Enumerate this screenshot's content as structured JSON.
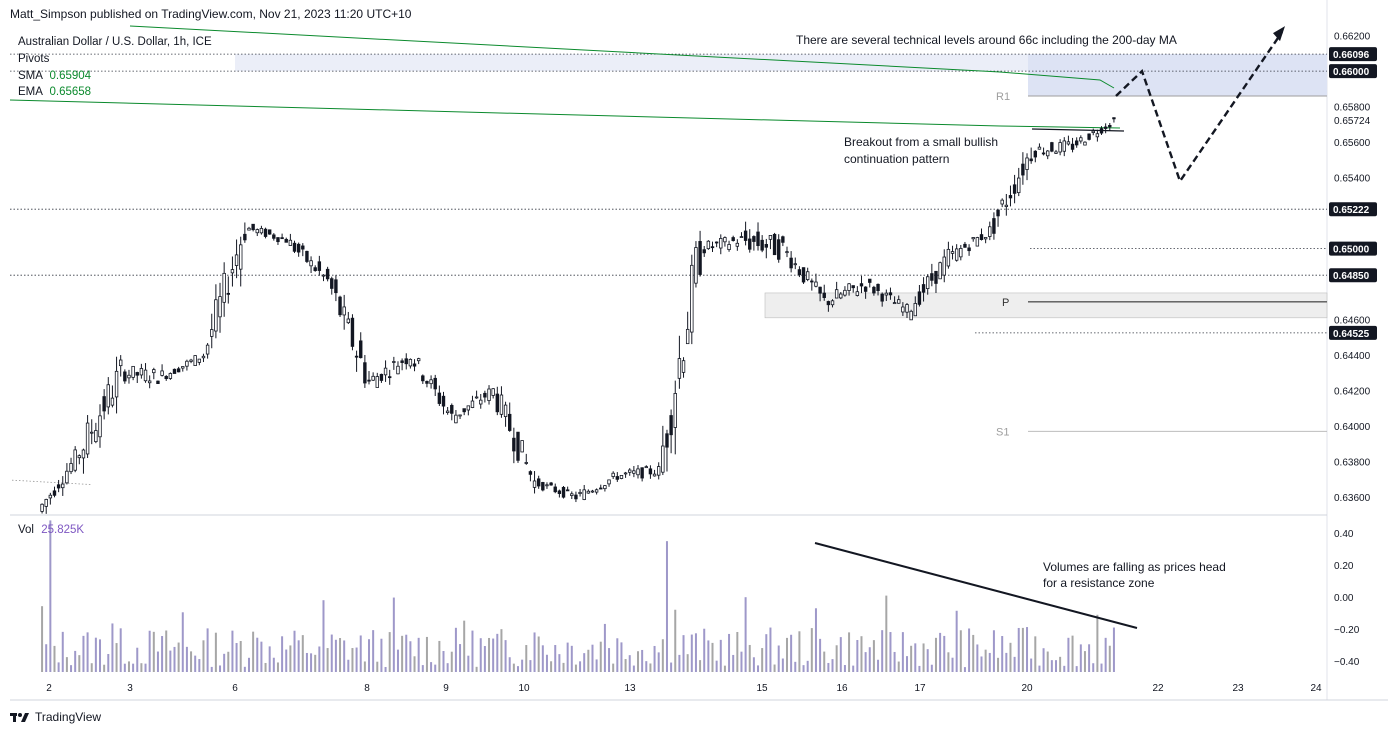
{
  "header": {
    "published_by": "Matt_Simpson published on TradingView.com, Nov 21, 2023 11:20 UTC+10",
    "symbol": "Australian Dollar / U.S. Dollar, 1h, ICE",
    "pivots_label": "Pivots",
    "sma_label": "SMA",
    "sma_value": "0.65904",
    "ema_label": "EMA",
    "ema_value": "0.65658",
    "vol_label": "Vol",
    "vol_value": "25.825K"
  },
  "footer": {
    "brand": "TradingView"
  },
  "colors": {
    "up": "#131722",
    "down": "#131722",
    "sma": "#0b8a2d",
    "ema": "#0b8a2d",
    "volume_bar": "#9e98c9",
    "volume_bar_alt": "#a6a6a6",
    "resistance_zone": "#dde3f4",
    "pivot_zone": "#eeeeee",
    "price_badge_bg": "#131722",
    "price_badge_fg": "#ffffff"
  },
  "chart_data": [
    {
      "type": "candlestick",
      "title": "Australian Dollar / U.S. Dollar, 1h, ICE",
      "x_tick_labels": [
        "2",
        "3",
        "6",
        "8",
        "9",
        "10",
        "13",
        "15",
        "16",
        "17",
        "20",
        "22",
        "23",
        "24"
      ],
      "y_tick_labels": [
        "0.66200",
        "0.65800",
        "0.65600",
        "0.65400",
        "0.64600",
        "0.64400",
        "0.64200",
        "0.64000",
        "0.63800",
        "0.63600"
      ],
      "ylim": [
        0.6351,
        0.6626
      ],
      "price_badges": [
        "0.66096",
        "0.66000",
        "0.65222",
        "0.65000",
        "0.64850",
        "0.64525"
      ],
      "last_price_label": "0.65724",
      "pivot_labels": {
        "r1": "R1",
        "p": "P",
        "s1": "S1"
      },
      "pivot_levels": {
        "r1": 0.6586,
        "p": 0.647,
        "s1": 0.6397
      },
      "horizontal_levels": [
        0.66096,
        0.66,
        0.65222,
        0.65,
        0.6485,
        0.64525
      ],
      "resistance_zone": [
        0.6586,
        0.66096
      ],
      "pivot_zone": [
        0.6461,
        0.6475
      ],
      "daily_closes": [
        {
          "day": "2",
          "open": 0.6352,
          "high": 0.639,
          "low": 0.635,
          "close": 0.6385
        },
        {
          "day": "2b",
          "open": 0.6385,
          "high": 0.644,
          "low": 0.636,
          "close": 0.643
        },
        {
          "day": "3",
          "open": 0.643,
          "high": 0.6452,
          "low": 0.6415,
          "close": 0.6428
        },
        {
          "day": "3b",
          "open": 0.6428,
          "high": 0.6442,
          "low": 0.642,
          "close": 0.644
        },
        {
          "day": "6",
          "open": 0.644,
          "high": 0.652,
          "low": 0.6438,
          "close": 0.6512
        },
        {
          "day": "6b",
          "open": 0.6512,
          "high": 0.6521,
          "low": 0.65,
          "close": 0.6505
        },
        {
          "day": "7",
          "open": 0.6505,
          "high": 0.651,
          "low": 0.6475,
          "close": 0.6482
        },
        {
          "day": "8",
          "open": 0.6482,
          "high": 0.6485,
          "low": 0.641,
          "close": 0.6425
        },
        {
          "day": "8b",
          "open": 0.6425,
          "high": 0.645,
          "low": 0.6412,
          "close": 0.644
        },
        {
          "day": "9",
          "open": 0.644,
          "high": 0.6445,
          "low": 0.64,
          "close": 0.6405
        },
        {
          "day": "9b",
          "open": 0.6405,
          "high": 0.643,
          "low": 0.6398,
          "close": 0.642
        },
        {
          "day": "10",
          "open": 0.642,
          "high": 0.6428,
          "low": 0.6362,
          "close": 0.6368
        },
        {
          "day": "13",
          "open": 0.6368,
          "high": 0.6372,
          "low": 0.6352,
          "close": 0.636
        },
        {
          "day": "13b",
          "open": 0.636,
          "high": 0.6378,
          "low": 0.6355,
          "close": 0.6372
        },
        {
          "day": "14",
          "open": 0.6372,
          "high": 0.639,
          "low": 0.6365,
          "close": 0.6375
        },
        {
          "day": "15",
          "open": 0.6375,
          "high": 0.651,
          "low": 0.637,
          "close": 0.65
        },
        {
          "day": "15b",
          "open": 0.65,
          "high": 0.6515,
          "low": 0.6485,
          "close": 0.6505
        },
        {
          "day": "16",
          "open": 0.6505,
          "high": 0.6545,
          "low": 0.649,
          "close": 0.65
        },
        {
          "day": "16b",
          "open": 0.65,
          "high": 0.6505,
          "low": 0.6462,
          "close": 0.647
        },
        {
          "day": "17",
          "open": 0.647,
          "high": 0.65,
          "low": 0.6462,
          "close": 0.648
        },
        {
          "day": "17b",
          "open": 0.648,
          "high": 0.6482,
          "low": 0.6452,
          "close": 0.6465
        },
        {
          "day": "18",
          "open": 0.6465,
          "high": 0.6508,
          "low": 0.646,
          "close": 0.6495
        },
        {
          "day": "20",
          "open": 0.6495,
          "high": 0.652,
          "low": 0.649,
          "close": 0.651
        },
        {
          "day": "20b",
          "open": 0.651,
          "high": 0.6565,
          "low": 0.6505,
          "close": 0.6555
        },
        {
          "day": "21",
          "open": 0.6555,
          "high": 0.6565,
          "low": 0.6535,
          "close": 0.6558
        },
        {
          "day": "21b",
          "open": 0.6558,
          "high": 0.6574,
          "low": 0.655,
          "close": 0.65724
        }
      ],
      "projection_path": [
        {
          "day": "21",
          "price": 0.6586
        },
        {
          "day": "21.5",
          "price": 0.66
        },
        {
          "day": "22",
          "price": 0.6538
        },
        {
          "day": "23.5",
          "price": 0.6622
        }
      ],
      "annotations": [
        "There are several technical levels around 66c including the 200-day MA",
        "Breakout from a small bullish continuation pattern"
      ]
    },
    {
      "type": "bar",
      "title": "Vol",
      "y_tick_labels": [
        "0.40",
        "0.20",
        "0.00",
        "−0.20",
        "−0.40"
      ],
      "ylim": [
        -0.47,
        0.47
      ],
      "annotations": [
        "Volumes are falling as prices head for a resistance zone"
      ]
    }
  ]
}
